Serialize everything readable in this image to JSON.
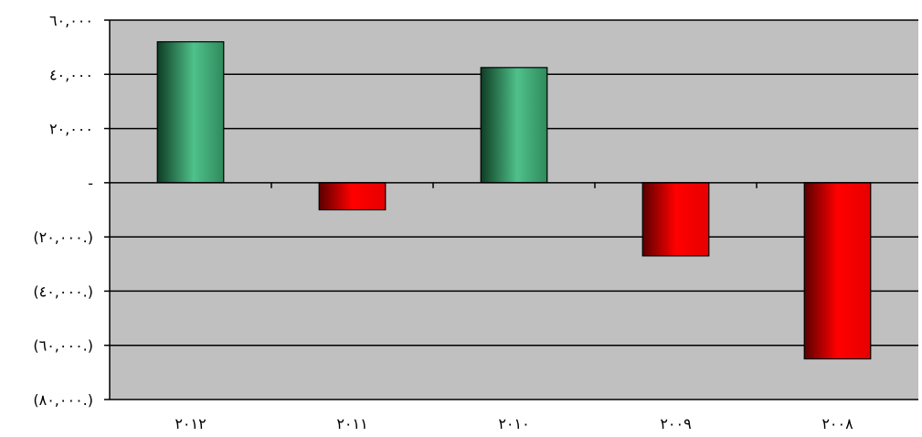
{
  "chart_data": {
    "type": "bar",
    "categories": [
      "٢٠١٢",
      "٢٠١١",
      "٢٠١٠",
      "٢٠٠٩",
      "٢٠٠٨"
    ],
    "values": [
      52000,
      -10000,
      42500,
      -27000,
      -65000
    ],
    "ylim": [
      -80000,
      60000
    ],
    "yticks": [
      {
        "value": 60000,
        "label": "٦٠,٠٠٠"
      },
      {
        "value": 40000,
        "label": "٤٠,٠٠٠"
      },
      {
        "value": 20000,
        "label": "٢٠,٠٠٠"
      },
      {
        "value": 0,
        "label": "-"
      },
      {
        "value": -20000,
        "label": "(٢٠,٠٠٠.)"
      },
      {
        "value": -40000,
        "label": "(٤٠,٠٠٠.)"
      },
      {
        "value": -60000,
        "label": "(٦٠,٠٠٠.)"
      },
      {
        "value": -80000,
        "label": "(٨٠,٠٠٠.)"
      }
    ],
    "grid": true,
    "colors": {
      "plot_background": "#c0c0c0",
      "positive_bar": "#3a9a6a",
      "negative_bar": "#e00000",
      "gridline": "#000000"
    }
  }
}
